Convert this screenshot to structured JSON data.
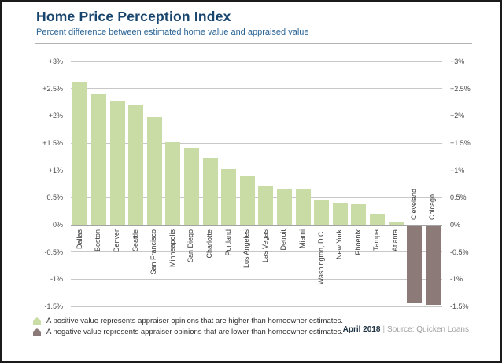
{
  "header": {
    "title": "Home Price Perception Index",
    "subtitle": "Percent difference between estimated home value and appraised value"
  },
  "axis": {
    "ticks": [
      {
        "label": "+3%",
        "value": 3
      },
      {
        "label": "+2.5%",
        "value": 2.5
      },
      {
        "label": "+2%",
        "value": 2
      },
      {
        "label": "+1.5%",
        "value": 1.5
      },
      {
        "label": "+1%",
        "value": 1
      },
      {
        "label": "0.5%",
        "value": 0.5
      },
      {
        "label": "0%",
        "value": 0
      },
      {
        "label": "-0.5%",
        "value": -0.5
      },
      {
        "label": "-1%",
        "value": -1
      },
      {
        "label": "-1.5%",
        "value": -1.5
      }
    ]
  },
  "chart_data": {
    "type": "bar",
    "title": "Home Price Perception Index",
    "subtitle": "Percent difference between estimated home value and appraised value",
    "categories": [
      "Dallas",
      "Boston",
      "Denver",
      "Seattle",
      "San Francisco",
      "Minneapolis",
      "San Diego",
      "Charlotte",
      "Portland",
      "Los Angeles",
      "Las Vegas",
      "Detroit",
      "Miami",
      "Washington, D.C.",
      "New York",
      "Phoenix",
      "Tampa",
      "Atlanta",
      "Cleveland",
      "Chicago"
    ],
    "values": [
      2.62,
      2.4,
      2.26,
      2.21,
      1.97,
      1.52,
      1.41,
      1.23,
      1.02,
      0.89,
      0.71,
      0.67,
      0.65,
      0.45,
      0.4,
      0.38,
      0.19,
      0.05,
      -1.44,
      -1.47
    ],
    "ylabel": "",
    "xlabel": "",
    "ylim": [
      -1.5,
      3
    ],
    "grid": true,
    "legend_position": "bottom-left",
    "positive_color": "#c9dca6",
    "negative_color": "#8c7a79"
  },
  "legend": {
    "positive": "A positive value represents appraiser opinions that are higher than homeowner estimates.",
    "negative": "A negative value represents appraiser opinions that are lower than homeowner estimates."
  },
  "footer": {
    "date": "April 2018",
    "separator": "|",
    "source": "Source: Quicken Loans"
  },
  "colors": {
    "title": "#17456e",
    "subtitle": "#2a6496",
    "gridline": "#c8c8c8",
    "zero_line": "#a3a3a3",
    "tick_text": "#4a4a4a",
    "city_label": "#3a3a3a",
    "border": "#1b1b1b"
  }
}
